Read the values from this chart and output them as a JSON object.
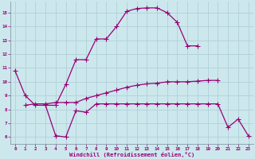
{
  "bg_color": "#cce8ed",
  "line_color": "#990077",
  "grid_color": "#b0d0d8",
  "xlabel": "Windchill (Refroidissement éolien,°C)",
  "xlim": [
    -0.5,
    23.5
  ],
  "ylim": [
    5.5,
    15.8
  ],
  "yticks": [
    6,
    7,
    8,
    9,
    10,
    11,
    12,
    13,
    14,
    15
  ],
  "xticks": [
    0,
    1,
    2,
    3,
    4,
    5,
    6,
    7,
    8,
    9,
    10,
    11,
    12,
    13,
    14,
    15,
    16,
    17,
    18,
    19,
    20,
    21,
    22,
    23
  ],
  "upper_x": [
    3,
    4,
    5,
    6,
    7,
    8,
    9,
    10,
    11,
    12,
    13,
    14,
    15,
    16,
    17,
    18
  ],
  "upper_y": [
    8.3,
    8.3,
    9.8,
    11.6,
    11.6,
    13.1,
    13.1,
    14.0,
    15.1,
    15.3,
    15.35,
    15.35,
    15.0,
    14.3,
    12.6,
    12.6
  ],
  "middle_x": [
    1,
    2,
    3,
    4,
    5,
    6,
    7,
    8,
    9,
    10,
    11,
    12,
    13,
    14,
    15,
    16,
    17,
    18,
    19,
    20
  ],
  "middle_y": [
    8.3,
    8.4,
    8.4,
    8.5,
    8.5,
    8.5,
    8.8,
    9.0,
    9.2,
    9.4,
    9.6,
    9.75,
    9.85,
    9.9,
    10.0,
    10.0,
    10.0,
    10.05,
    10.1,
    10.1
  ],
  "lower_x": [
    0,
    1,
    2,
    3,
    4,
    5,
    6,
    7,
    8,
    9,
    10,
    11,
    12,
    13,
    14,
    15,
    16,
    17,
    18,
    19,
    20,
    21,
    22,
    23
  ],
  "lower_y": [
    10.8,
    9.0,
    8.3,
    8.3,
    6.1,
    6.0,
    7.9,
    7.8,
    8.4,
    8.4,
    8.4,
    8.4,
    8.4,
    8.4,
    8.4,
    8.4,
    8.4,
    8.4,
    8.4,
    8.4,
    8.4,
    6.7,
    7.3,
    6.1
  ]
}
